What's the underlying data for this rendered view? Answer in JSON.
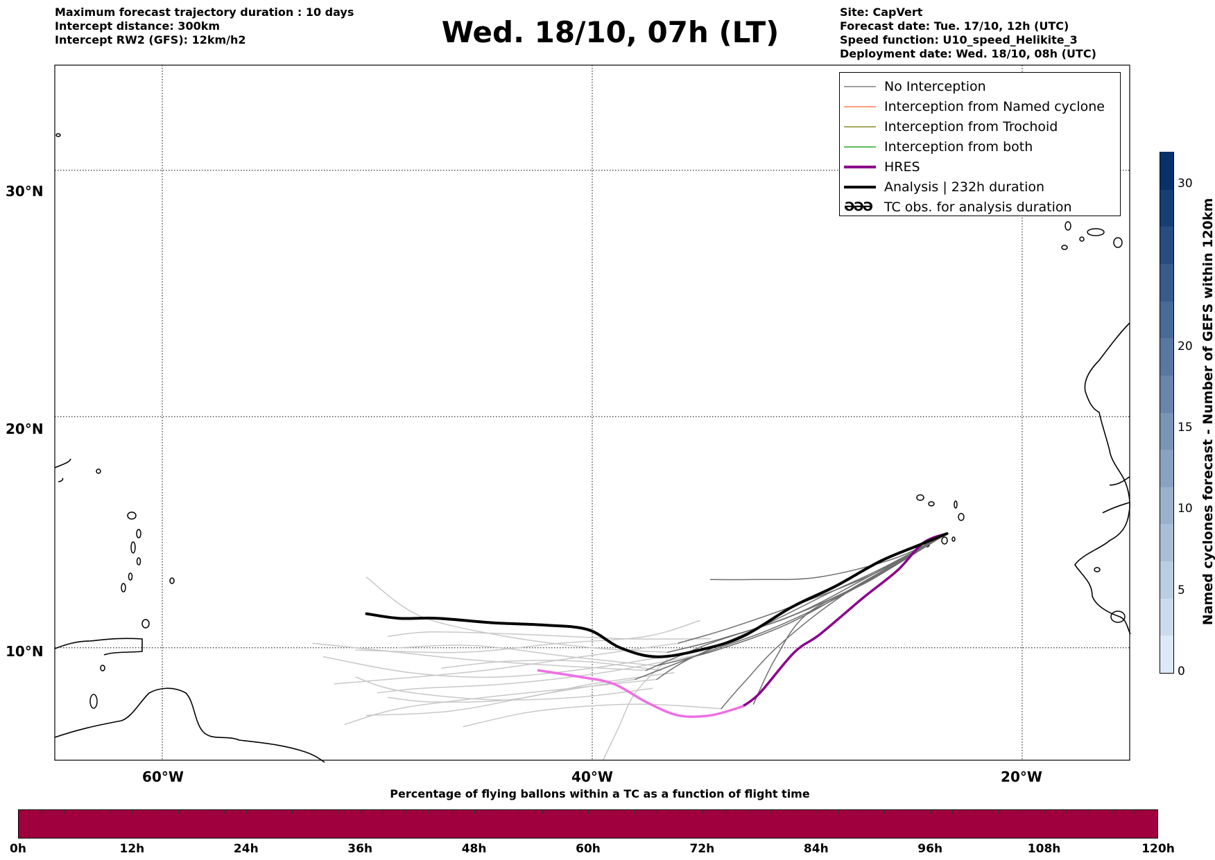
{
  "header_left": {
    "line1": "Maximum forecast trajectory duration : 10 days",
    "line2": "Intercept distance: 300km",
    "line3": "Intercept RW2 (GFS):  12km/h2"
  },
  "title": "Wed. 18/10, 07h (LT)",
  "header_right": {
    "site": "Site: CapVert",
    "forecast_date": "Forecast date: Tue. 17/10, 12h (UTC)",
    "speed_function": "Speed function: U10_speed_Helikite_3",
    "deployment_date": "Deployment date: Wed. 18/10, 08h (UTC)"
  },
  "map": {
    "lon_range": [
      -65,
      -15
    ],
    "lat_range": [
      5,
      34
    ],
    "lat_labels": [
      "30°N",
      "20°N",
      "10°N"
    ],
    "lon_labels": [
      "60°W",
      "40°W",
      "20°W"
    ],
    "gridlines": true,
    "launch_site": {
      "lon": -23.5,
      "lat": 15.0
    }
  },
  "legend": {
    "entries": [
      {
        "label": "No Interception",
        "color": "#808080"
      },
      {
        "label": "Interception from Named cyclone",
        "color": "#ff7f50"
      },
      {
        "label": "Interception from Trochoid",
        "color": "#8b8b2a"
      },
      {
        "label": "Interception from both",
        "color": "#2ca02c"
      },
      {
        "label": "HRES",
        "color": "#8b008b"
      },
      {
        "label": "Analysis | 232h duration",
        "color": "#000000"
      },
      {
        "label": "TC obs. for analysis duration",
        "symbol": "ӘӘӘ"
      }
    ]
  },
  "colorbar_vertical": {
    "label": "Named cyclones forecast - Number of GEFS within 120km",
    "ticks": [
      "0",
      "5",
      "10",
      "15",
      "20",
      "30"
    ],
    "tick_values": [
      0,
      5,
      10,
      15,
      20,
      30
    ],
    "range": [
      0,
      32
    ],
    "colors_low_to_high": [
      "#dce9f6",
      "#08306b"
    ]
  },
  "colorbar_horizontal": {
    "caption": "Percentage of flying ballons within a TC as a function of flight time",
    "ticks": [
      "0h",
      "12h",
      "24h",
      "36h",
      "48h",
      "60h",
      "72h",
      "84h",
      "96h",
      "108h",
      "120h"
    ],
    "color": "#a1003f"
  },
  "trajectories": {
    "hres": [
      {
        "lon": -23.5,
        "lat": 15.0
      },
      {
        "lon": -24.6,
        "lat": 14.6
      },
      {
        "lon": -25.8,
        "lat": 13.4
      },
      {
        "lon": -27.4,
        "lat": 12.2
      },
      {
        "lon": -29.4,
        "lat": 10.6
      },
      {
        "lon": -30.6,
        "lat": 9.8
      },
      {
        "lon": -32.2,
        "lat": 8.0
      },
      {
        "lon": -33.0,
        "lat": 7.4
      },
      {
        "lon": -34.5,
        "lat": 7.0
      },
      {
        "lon": -36.0,
        "lat": 7.0
      },
      {
        "lon": -37.5,
        "lat": 7.6
      },
      {
        "lon": -39.0,
        "lat": 8.4
      },
      {
        "lon": -40.5,
        "lat": 8.7
      },
      {
        "lon": -42.5,
        "lat": 9.0
      }
    ],
    "analysis": [
      {
        "lon": -23.5,
        "lat": 15.0
      },
      {
        "lon": -24.8,
        "lat": 14.5
      },
      {
        "lon": -26.6,
        "lat": 13.8
      },
      {
        "lon": -28.7,
        "lat": 12.7
      },
      {
        "lon": -30.7,
        "lat": 11.8
      },
      {
        "lon": -33.0,
        "lat": 10.5
      },
      {
        "lon": -35.0,
        "lat": 9.9
      },
      {
        "lon": -37.0,
        "lat": 9.6
      },
      {
        "lon": -38.7,
        "lat": 10.0
      },
      {
        "lon": -40.2,
        "lat": 10.8
      },
      {
        "lon": -42.2,
        "lat": 11.0
      },
      {
        "lon": -44.6,
        "lat": 11.1
      },
      {
        "lon": -47.2,
        "lat": 11.3
      },
      {
        "lon": -49.0,
        "lat": 11.3
      },
      {
        "lon": -50.5,
        "lat": 11.5
      }
    ],
    "ensemble_dark": [
      [
        {
          "lon": -23.5,
          "lat": 15.0
        },
        {
          "lon": -27.0,
          "lat": 13.2
        },
        {
          "lon": -30.5,
          "lat": 11.5
        },
        {
          "lon": -34.0,
          "lat": 10.4
        },
        {
          "lon": -36.5,
          "lat": 9.8
        }
      ],
      [
        {
          "lon": -23.5,
          "lat": 15.0
        },
        {
          "lon": -26.5,
          "lat": 13.5
        },
        {
          "lon": -29.0,
          "lat": 12.4
        },
        {
          "lon": -32.0,
          "lat": 11.0
        },
        {
          "lon": -35.5,
          "lat": 9.5
        },
        {
          "lon": -37.0,
          "lat": 8.6
        }
      ],
      [
        {
          "lon": -23.5,
          "lat": 15.0
        },
        {
          "lon": -27.5,
          "lat": 12.8
        },
        {
          "lon": -31.0,
          "lat": 11.3
        },
        {
          "lon": -34.5,
          "lat": 10.2
        },
        {
          "lon": -37.5,
          "lat": 9.0
        }
      ],
      [
        {
          "lon": -23.5,
          "lat": 15.0
        },
        {
          "lon": -26.0,
          "lat": 13.9
        },
        {
          "lon": -29.5,
          "lat": 13.1
        },
        {
          "lon": -32.5,
          "lat": 13.0
        },
        {
          "lon": -34.5,
          "lat": 13.0
        }
      ],
      [
        {
          "lon": -23.5,
          "lat": 15.0
        },
        {
          "lon": -27.0,
          "lat": 13.0
        },
        {
          "lon": -30.0,
          "lat": 11.5
        },
        {
          "lon": -31.5,
          "lat": 9.5
        },
        {
          "lon": -32.5,
          "lat": 7.5
        }
      ],
      [
        {
          "lon": -23.5,
          "lat": 15.0
        },
        {
          "lon": -27.8,
          "lat": 12.6
        },
        {
          "lon": -31.5,
          "lat": 10.9
        },
        {
          "lon": -35.0,
          "lat": 9.7
        },
        {
          "lon": -38.0,
          "lat": 8.6
        }
      ],
      [
        {
          "lon": -23.5,
          "lat": 15.0
        },
        {
          "lon": -26.8,
          "lat": 13.3
        },
        {
          "lon": -30.2,
          "lat": 12.0
        },
        {
          "lon": -33.5,
          "lat": 10.9
        },
        {
          "lon": -36.0,
          "lat": 10.2
        }
      ],
      [
        {
          "lon": -23.5,
          "lat": 15.0
        },
        {
          "lon": -28.2,
          "lat": 12.4
        },
        {
          "lon": -31.2,
          "lat": 10.2
        },
        {
          "lon": -33.0,
          "lat": 8.4
        },
        {
          "lon": -34.0,
          "lat": 7.3
        }
      ],
      [
        {
          "lon": -23.5,
          "lat": 15.0
        },
        {
          "lon": -27.2,
          "lat": 13.0
        },
        {
          "lon": -30.8,
          "lat": 11.1
        },
        {
          "lon": -34.2,
          "lat": 9.9
        },
        {
          "lon": -37.0,
          "lat": 9.2
        }
      ]
    ],
    "ensemble_light": [
      [
        {
          "lon": -36.5,
          "lat": 9.8
        },
        {
          "lon": -40.0,
          "lat": 10.0
        },
        {
          "lon": -44.0,
          "lat": 10.5
        },
        {
          "lon": -48.0,
          "lat": 11.4
        },
        {
          "lon": -50.5,
          "lat": 13.1
        }
      ],
      [
        {
          "lon": -37.0,
          "lat": 8.6
        },
        {
          "lon": -41.0,
          "lat": 8.2
        },
        {
          "lon": -45.0,
          "lat": 7.8
        },
        {
          "lon": -49.0,
          "lat": 7.3
        },
        {
          "lon": -51.5,
          "lat": 6.6
        }
      ],
      [
        {
          "lon": -37.5,
          "lat": 9.0
        },
        {
          "lon": -41.5,
          "lat": 9.2
        },
        {
          "lon": -46.0,
          "lat": 9.5
        },
        {
          "lon": -50.0,
          "lat": 9.9
        },
        {
          "lon": -53.0,
          "lat": 10.2
        }
      ],
      [
        {
          "lon": -38.0,
          "lat": 8.6
        },
        {
          "lon": -42.0,
          "lat": 8.0
        },
        {
          "lon": -46.5,
          "lat": 7.2
        },
        {
          "lon": -50.5,
          "lat": 7.0
        }
      ],
      [
        {
          "lon": -36.0,
          "lat": 10.2
        },
        {
          "lon": -40.5,
          "lat": 9.6
        },
        {
          "lon": -45.0,
          "lat": 9.0
        },
        {
          "lon": -49.5,
          "lat": 8.6
        },
        {
          "lon": -52.0,
          "lat": 8.4
        }
      ],
      [
        {
          "lon": -34.0,
          "lat": 7.3
        },
        {
          "lon": -38.0,
          "lat": 7.5
        },
        {
          "lon": -42.5,
          "lat": 7.2
        },
        {
          "lon": -46.0,
          "lat": 6.5
        }
      ],
      [
        {
          "lon": -37.0,
          "lat": 9.2
        },
        {
          "lon": -41.0,
          "lat": 9.6
        },
        {
          "lon": -45.5,
          "lat": 10.1
        },
        {
          "lon": -49.0,
          "lat": 10.0
        }
      ],
      [
        {
          "lon": -36.5,
          "lat": 9.5
        },
        {
          "lon": -38.0,
          "lat": 8.0
        },
        {
          "lon": -38.8,
          "lat": 6.4
        },
        {
          "lon": -39.5,
          "lat": 5.0
        }
      ],
      [
        {
          "lon": -35.0,
          "lat": 9.7
        },
        {
          "lon": -39.5,
          "lat": 8.9
        },
        {
          "lon": -44.0,
          "lat": 8.4
        },
        {
          "lon": -48.0,
          "lat": 8.2
        },
        {
          "lon": -50.0,
          "lat": 8.0
        }
      ],
      [
        {
          "lon": -35.5,
          "lat": 9.8
        },
        {
          "lon": -40.0,
          "lat": 9.1
        },
        {
          "lon": -44.5,
          "lat": 8.7
        },
        {
          "lon": -48.5,
          "lat": 8.9
        },
        {
          "lon": -52.5,
          "lat": 9.6
        }
      ],
      [
        {
          "lon": -34.5,
          "lat": 10.4
        },
        {
          "lon": -38.5,
          "lat": 10.4
        },
        {
          "lon": -43.5,
          "lat": 10.6
        },
        {
          "lon": -47.5,
          "lat": 10.7
        },
        {
          "lon": -49.5,
          "lat": 10.5
        }
      ],
      [
        {
          "lon": -36.2,
          "lat": 8.9
        },
        {
          "lon": -40.0,
          "lat": 8.4
        },
        {
          "lon": -43.8,
          "lat": 7.7
        },
        {
          "lon": -47.5,
          "lat": 7.6
        },
        {
          "lon": -49.5,
          "lat": 7.8
        }
      ],
      [
        {
          "lon": -35.0,
          "lat": 11.2
        },
        {
          "lon": -37.5,
          "lat": 10.5
        },
        {
          "lon": -41.5,
          "lat": 10.2
        },
        {
          "lon": -46.0,
          "lat": 9.8
        },
        {
          "lon": -51.0,
          "lat": 9.9
        }
      ],
      [
        {
          "lon": -37.2,
          "lat": 8.2
        },
        {
          "lon": -40.8,
          "lat": 7.8
        },
        {
          "lon": -44.8,
          "lat": 7.7
        },
        {
          "lon": -49.0,
          "lat": 8.1
        },
        {
          "lon": -51.0,
          "lat": 8.7
        }
      ],
      [
        {
          "lon": -36.8,
          "lat": 9.0
        },
        {
          "lon": -40.5,
          "lat": 9.4
        },
        {
          "lon": -44.0,
          "lat": 9.4
        },
        {
          "lon": -47.0,
          "lat": 9.1
        }
      ]
    ]
  }
}
